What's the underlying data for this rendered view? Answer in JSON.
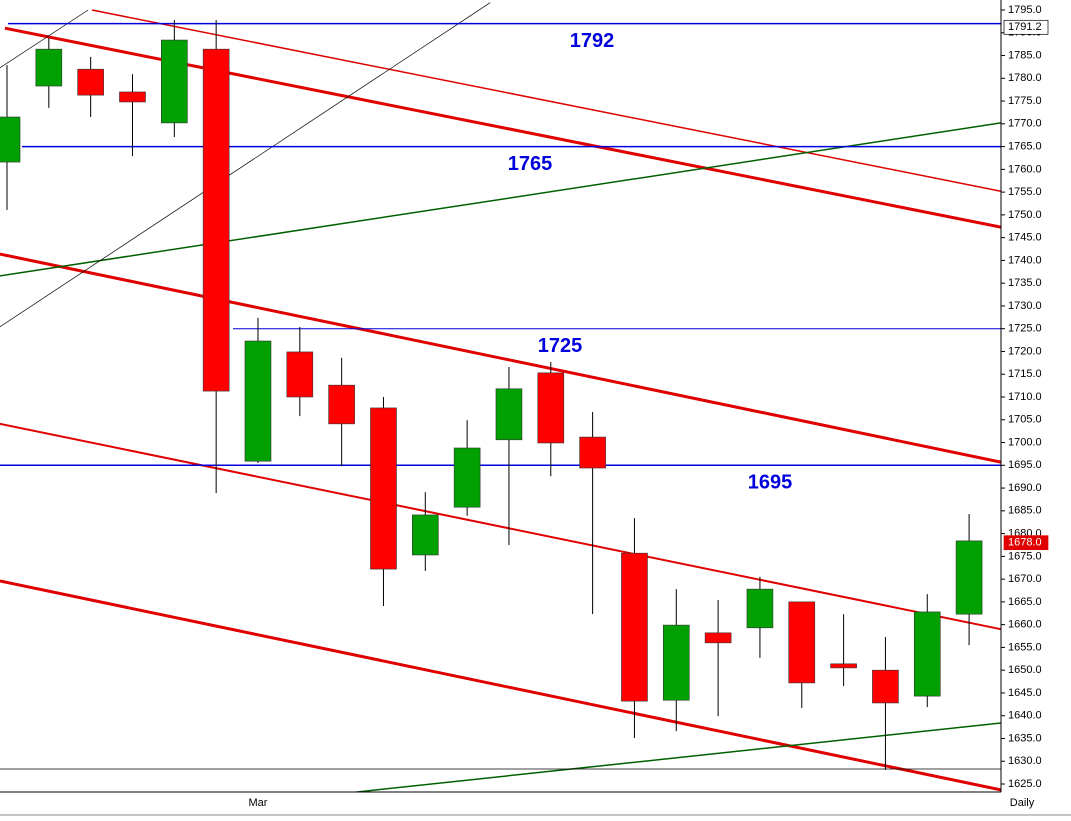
{
  "chart_data": {
    "type": "candlestick",
    "categories": [
      null,
      null,
      null,
      null,
      null,
      null,
      "Mar",
      null,
      null,
      null,
      null,
      null,
      null,
      null,
      null,
      null,
      null,
      null,
      null,
      null,
      null,
      null,
      null,
      null
    ],
    "open": [
      1761.6,
      1778.3,
      1782.0,
      1777.0,
      1770.2,
      1786.4,
      1695.9,
      1719.9,
      1712.6,
      1707.6,
      1675.3,
      1685.8,
      1700.6,
      1715.3,
      1701.2,
      1675.7,
      1643.4,
      1658.2,
      1659.3,
      1665.0,
      1651.4,
      1650.0,
      1644.3,
      1662.3
    ],
    "high": [
      1782.9,
      1788.9,
      1784.7,
      1780.9,
      1792.8,
      1792.8,
      1727.4,
      1725.4,
      1718.6,
      1710.0,
      1689.1,
      1704.9,
      1716.6,
      1717.7,
      1706.7,
      1683.4,
      1667.8,
      1665.4,
      1670.5,
      1665.0,
      1662.3,
      1657.3,
      1666.7,
      1684.3
    ],
    "low": [
      1751.1,
      1773.5,
      1771.5,
      1762.9,
      1767.1,
      1688.9,
      1695.5,
      1705.8,
      1694.8,
      1664.1,
      1671.8,
      1683.9,
      1677.5,
      1692.6,
      1662.3,
      1635.1,
      1636.6,
      1639.9,
      1652.7,
      1641.7,
      1646.5,
      1628.1,
      1641.9,
      1655.5
    ],
    "close": [
      1771.5,
      1786.4,
      1776.3,
      1774.8,
      1788.4,
      1711.3,
      1722.3,
      1710.0,
      1704.1,
      1672.2,
      1684.1,
      1698.8,
      1711.8,
      1699.9,
      1694.4,
      1643.2,
      1659.9,
      1656.0,
      1667.8,
      1647.2,
      1650.5,
      1642.8,
      1662.8,
      1678.4
    ],
    "up_color": "#00a000",
    "down_color": "#ff0000",
    "x_label": "Daily",
    "ylim": [
      1625,
      1795
    ],
    "yticks": [
      {
        "value": 1625,
        "label": "1625.0"
      },
      {
        "value": 1630,
        "label": "1630.0"
      },
      {
        "value": 1635,
        "label": "1635.0"
      },
      {
        "value": 1640,
        "label": "1640.0"
      },
      {
        "value": 1645,
        "label": "1645.0"
      },
      {
        "value": 1650,
        "label": "1650.0"
      },
      {
        "value": 1655,
        "label": "1655.0"
      },
      {
        "value": 1660,
        "label": "1660.0"
      },
      {
        "value": 1665,
        "label": "1665.0"
      },
      {
        "value": 1670,
        "label": "1670.0"
      },
      {
        "value": 1675,
        "label": "1675.0"
      },
      {
        "value": 1680,
        "label": "1680.0"
      },
      {
        "value": 1685,
        "label": "1685.0"
      },
      {
        "value": 1690,
        "label": "1690.0"
      },
      {
        "value": 1695,
        "label": "1695.0"
      },
      {
        "value": 1700,
        "label": "1700.0"
      },
      {
        "value": 1705,
        "label": "1705.0"
      },
      {
        "value": 1710,
        "label": "1710.0"
      },
      {
        "value": 1715,
        "label": "1715.0"
      },
      {
        "value": 1720,
        "label": "1720.0"
      },
      {
        "value": 1725,
        "label": "1725.0"
      },
      {
        "value": 1730,
        "label": "1730.0"
      },
      {
        "value": 1735,
        "label": "1735.0"
      },
      {
        "value": 1740,
        "label": "1740.0"
      },
      {
        "value": 1745,
        "label": "1745.0"
      },
      {
        "value": 1750,
        "label": "1750.0"
      },
      {
        "value": 1755,
        "label": "1755.0"
      },
      {
        "value": 1760,
        "label": "1760.0"
      },
      {
        "value": 1765,
        "label": "1765.0"
      },
      {
        "value": 1770,
        "label": "1770.0"
      },
      {
        "value": 1775,
        "label": "1775.0"
      },
      {
        "value": 1780,
        "label": "1780.0"
      },
      {
        "value": 1785,
        "label": "1785.0"
      },
      {
        "value": 1790,
        "label": "1790.0"
      },
      {
        "value": 1795,
        "label": "1795.0"
      }
    ],
    "levels": [
      1792,
      1765,
      1725,
      1695
    ],
    "level_color": "#0000dd",
    "price_markers": [
      {
        "value": 1791.2,
        "label": "1791.2",
        "color": "#ffffff"
      },
      {
        "value": 1678,
        "label": "1678.0",
        "color": "#e00000"
      }
    ],
    "trendlines": [
      {
        "x": [
          -0.05,
          23.76
        ],
        "y": [
          1791.0,
          1747.3
        ],
        "color": "#e00000",
        "width": 3
      },
      {
        "x": [
          2.03,
          23.76
        ],
        "y": [
          1795.0,
          1755.2
        ],
        "color": "#e00000",
        "width": 1.5
      },
      {
        "x": [
          -0.17,
          23.76
        ],
        "y": [
          1741.4,
          1695.7
        ],
        "color": "#e00000",
        "width": 3
      },
      {
        "x": [
          -0.17,
          23.76
        ],
        "y": [
          1704.1,
          1659.0
        ],
        "color": "#e00000",
        "width": 2
      },
      {
        "x": [
          -0.17,
          23.76
        ],
        "y": [
          1669.6,
          1623.7
        ],
        "color": "#e00000",
        "width": 3
      },
      {
        "x": [
          -0.17,
          23.76
        ],
        "y": [
          1736.6,
          1770.2
        ],
        "color": "#006000",
        "width": 1.5
      },
      {
        "x": [
          8.32,
          23.76
        ],
        "y": [
          1623.2,
          1638.4
        ],
        "color": "#006000",
        "width": 1.5
      },
      {
        "x": [
          -0.17,
          11.55
        ],
        "y": [
          1725.4,
          1796.6
        ],
        "color": "#000000",
        "width": 0.7
      },
      {
        "x": [
          -0.17,
          1.94
        ],
        "y": [
          1782.3,
          1795.0
        ],
        "color": "#000000",
        "width": 0.7
      },
      {
        "x": [
          -0.17,
          23.76
        ],
        "y": [
          1628.3,
          1628.3
        ],
        "color": "#000000",
        "width": 0.7
      }
    ]
  }
}
